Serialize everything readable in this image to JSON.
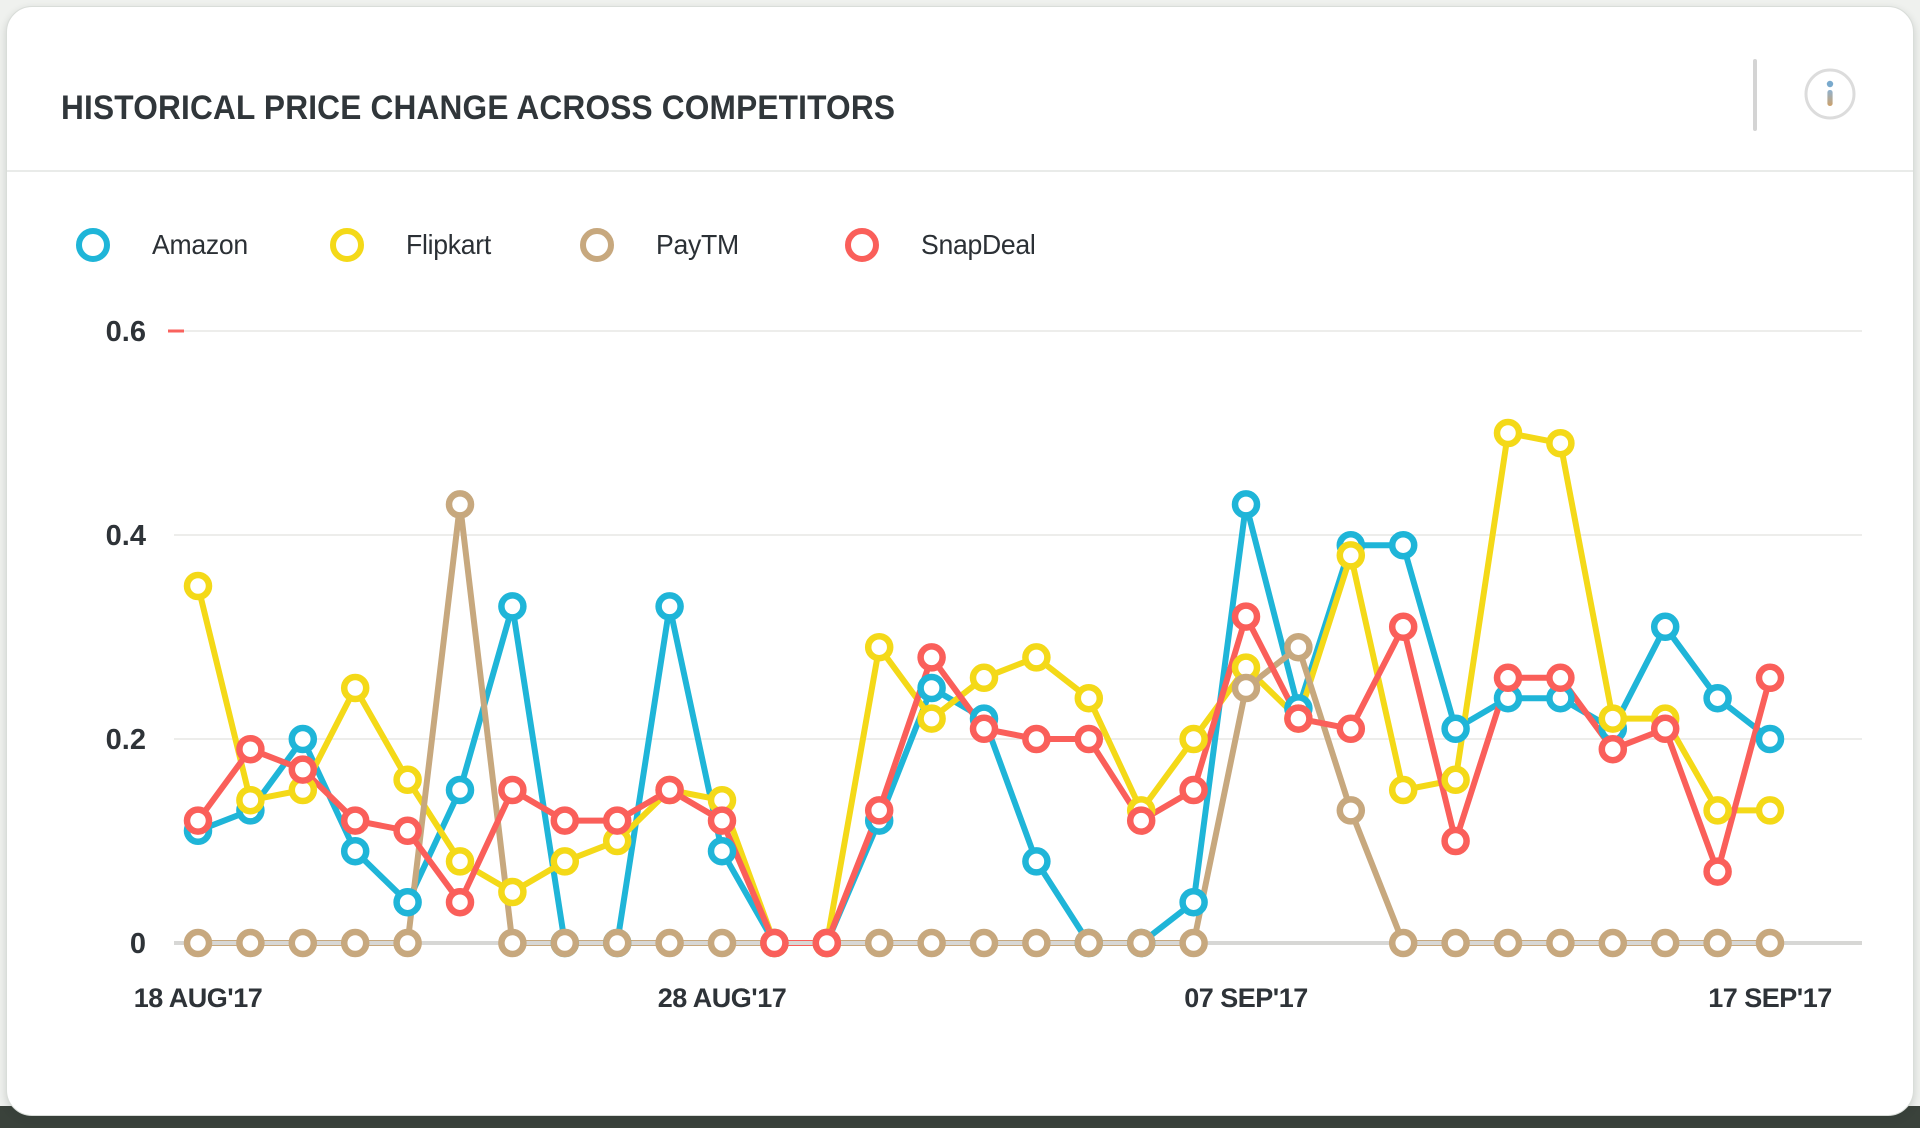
{
  "header": {
    "title": "HISTORICAL PRICE CHANGE ACROSS COMPETITORS",
    "info_icon": "info-icon"
  },
  "legend": [
    {
      "label": "Amazon",
      "color": "#1fb5d8"
    },
    {
      "label": "Flipkart",
      "color": "#f4d918"
    },
    {
      "label": "PayTM",
      "color": "#c7a87e"
    },
    {
      "label": "SnapDeal",
      "color": "#fa5f5a"
    }
  ],
  "colors": {
    "grid": "#ededeb",
    "axis_baseline": "#d7d7d5",
    "tick_text": "#2e3338",
    "accent_dash": "#f9625d",
    "card_background": "#ffffff",
    "page_background": "#eff1ee",
    "bottom_strip": "#3a423b"
  },
  "chart_data": {
    "type": "line",
    "title": "HISTORICAL PRICE CHANGE ACROSS COMPETITORS",
    "xlabel": "",
    "ylabel": "",
    "ylim": [
      0,
      0.6
    ],
    "grid": true,
    "legend_position": "top",
    "marker": "open-circle",
    "y_ticks": [
      0,
      0.2,
      0.4,
      0.6
    ],
    "y_tick_labels": [
      "0",
      "0.2",
      "0.4",
      "0.6"
    ],
    "x_points": 31,
    "x_tick_labels": [
      {
        "label": "18 AUG'17",
        "day": 0
      },
      {
        "label": "28 AUG'17",
        "day": 10
      },
      {
        "label": "07 SEP'17",
        "day": 20
      },
      {
        "label": "17 SEP'17",
        "day": 30
      }
    ],
    "series": [
      {
        "name": "Amazon",
        "color": "#1fb5d8",
        "values": [
          0.11,
          0.13,
          0.2,
          0.09,
          0.04,
          0.15,
          0.33,
          0,
          0,
          0.33,
          0.09,
          0,
          0,
          0.12,
          0.25,
          0.22,
          0.08,
          0,
          0,
          0.04,
          0.43,
          0.23,
          0.39,
          0.39,
          0.21,
          0.24,
          0.24,
          0.21,
          0.31,
          0.24,
          0.2
        ]
      },
      {
        "name": "Flipkart",
        "color": "#f4d918",
        "values": [
          0.35,
          0.14,
          0.15,
          0.25,
          0.16,
          0.08,
          0.05,
          0.08,
          0.1,
          0.15,
          0.14,
          0,
          0,
          0.29,
          0.22,
          0.26,
          0.28,
          0.24,
          0.13,
          0.2,
          0.27,
          0.22,
          0.38,
          0.15,
          0.16,
          0.5,
          0.49,
          0.22,
          0.22,
          0.13,
          0.13
        ]
      },
      {
        "name": "PayTM",
        "color": "#c7a87e",
        "values": [
          0,
          0,
          0,
          0,
          0,
          0.43,
          0,
          0,
          0,
          0,
          0,
          0,
          0,
          0,
          0,
          0,
          0,
          0,
          0,
          0,
          0.25,
          0.29,
          0.13,
          0,
          0,
          0,
          0,
          0,
          0,
          0,
          0
        ]
      },
      {
        "name": "SnapDeal",
        "color": "#fa5f5a",
        "values": [
          0.12,
          0.19,
          0.17,
          0.12,
          0.11,
          0.04,
          0.15,
          0.12,
          0.12,
          0.15,
          0.12,
          0,
          0,
          0.13,
          0.28,
          0.21,
          0.2,
          0.2,
          0.12,
          0.15,
          0.32,
          0.22,
          0.21,
          0.31,
          0.1,
          0.26,
          0.26,
          0.19,
          0.21,
          0.07,
          0.26
        ]
      }
    ]
  }
}
